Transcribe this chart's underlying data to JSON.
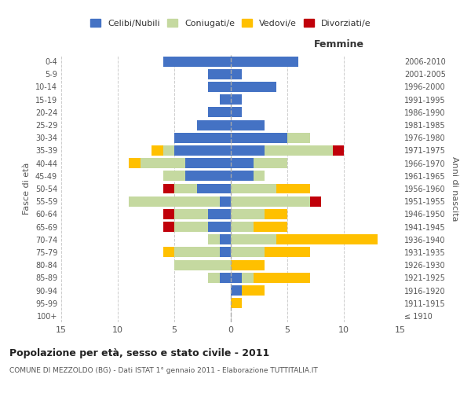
{
  "age_groups": [
    "100+",
    "95-99",
    "90-94",
    "85-89",
    "80-84",
    "75-79",
    "70-74",
    "65-69",
    "60-64",
    "55-59",
    "50-54",
    "45-49",
    "40-44",
    "35-39",
    "30-34",
    "25-29",
    "20-24",
    "15-19",
    "10-14",
    "5-9",
    "0-4"
  ],
  "birth_years": [
    "≤ 1910",
    "1911-1915",
    "1916-1920",
    "1921-1925",
    "1926-1930",
    "1931-1935",
    "1936-1940",
    "1941-1945",
    "1946-1950",
    "1951-1955",
    "1956-1960",
    "1961-1965",
    "1966-1970",
    "1971-1975",
    "1976-1980",
    "1981-1985",
    "1986-1990",
    "1991-1995",
    "1996-2000",
    "2001-2005",
    "2006-2010"
  ],
  "maschi": {
    "celibi": [
      0,
      0,
      0,
      1,
      0,
      1,
      1,
      2,
      2,
      1,
      3,
      4,
      4,
      5,
      5,
      3,
      2,
      1,
      2,
      2,
      6
    ],
    "coniugati": [
      0,
      0,
      0,
      1,
      5,
      4,
      1,
      3,
      3,
      8,
      2,
      2,
      4,
      1,
      0,
      0,
      0,
      0,
      0,
      0,
      0
    ],
    "vedovi": [
      0,
      0,
      0,
      0,
      0,
      1,
      0,
      0,
      0,
      0,
      0,
      0,
      1,
      1,
      0,
      0,
      0,
      0,
      0,
      0,
      0
    ],
    "divorziati": [
      0,
      0,
      0,
      0,
      0,
      0,
      0,
      1,
      1,
      0,
      1,
      0,
      0,
      0,
      0,
      0,
      0,
      0,
      0,
      0,
      0
    ]
  },
  "femmine": {
    "nubili": [
      0,
      0,
      1,
      1,
      0,
      0,
      0,
      0,
      0,
      0,
      0,
      2,
      2,
      3,
      5,
      3,
      1,
      1,
      4,
      1,
      6
    ],
    "coniugate": [
      0,
      0,
      0,
      1,
      0,
      3,
      4,
      2,
      3,
      7,
      4,
      1,
      3,
      6,
      2,
      0,
      0,
      0,
      0,
      0,
      0
    ],
    "vedove": [
      0,
      1,
      2,
      5,
      3,
      4,
      9,
      3,
      2,
      0,
      3,
      0,
      0,
      0,
      0,
      0,
      0,
      0,
      0,
      0,
      0
    ],
    "divorziate": [
      0,
      0,
      0,
      0,
      0,
      0,
      0,
      0,
      0,
      1,
      0,
      0,
      0,
      1,
      0,
      0,
      0,
      0,
      0,
      0,
      0
    ]
  },
  "colors": {
    "celibi": "#4472c4",
    "coniugati": "#c5d9a0",
    "vedovi": "#ffc000",
    "divorziati": "#c0000a"
  },
  "xlim": 15,
  "title": "Popolazione per età, sesso e stato civile - 2011",
  "subtitle": "COMUNE DI MEZZOLDO (BG) - Dati ISTAT 1° gennaio 2011 - Elaborazione TUTTITALIA.IT",
  "ylabel": "Fasce di età",
  "ylabel_right": "Anni di nascita",
  "legend_labels": [
    "Celibi/Nubili",
    "Coniugati/e",
    "Vedovi/e",
    "Divorziati/e"
  ],
  "background_color": "#ffffff",
  "grid_color": "#cccccc"
}
